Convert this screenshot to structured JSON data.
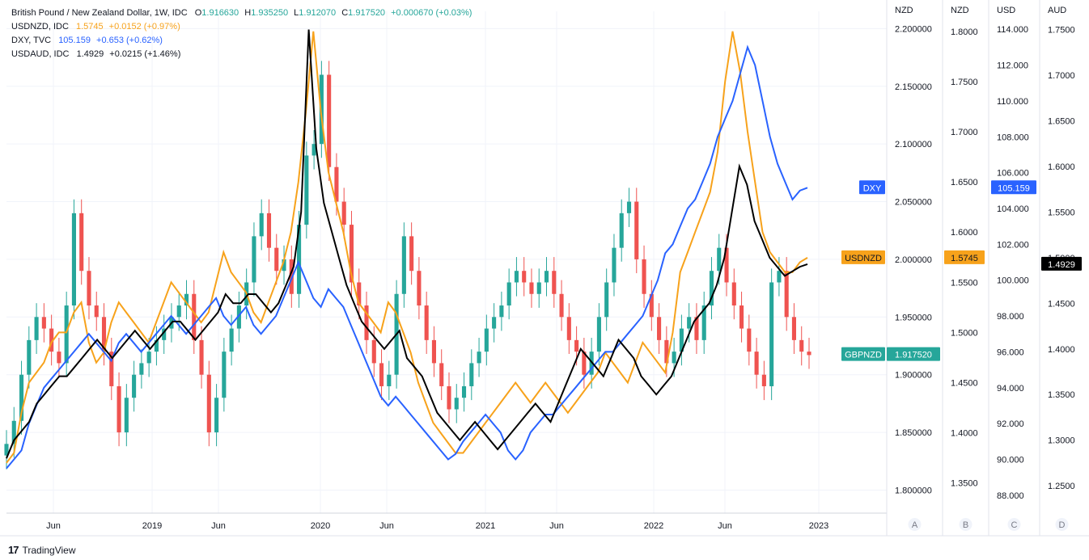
{
  "legend": {
    "main": {
      "symbol": "British Pound / New Zealand Dollar, 1W, IDC",
      "o_label": "O",
      "o": "1.916630",
      "h_label": "H",
      "h": "1.935250",
      "l_label": "L",
      "l": "1.912070",
      "c_label": "C",
      "c": "1.917520",
      "change": "+0.000670 (+0.03%)"
    },
    "usdnzd": {
      "symbol": "USDNZD, IDC",
      "value": "1.5745",
      "change": "+0.0152 (+0.97%)"
    },
    "dxy": {
      "symbol": "DXY, TVC",
      "value": "105.159",
      "change": "+0.653 (+0.62%)"
    },
    "usdaud": {
      "symbol": "USDAUD, IDC",
      "value": "1.4929",
      "change": "+0.0215 (+1.46%)"
    }
  },
  "brand": {
    "name": "TradingView",
    "logo": "17"
  },
  "colors": {
    "up": "#26a69a",
    "down": "#ef5350",
    "usdnzd": "#f7a21b",
    "dxy": "#2962ff",
    "usdaud": "#000000",
    "grid": "#f0f3fa",
    "axis_text": "#131722"
  },
  "chart_data": {
    "type": "line",
    "x_labels": [
      "Jun",
      "2019",
      "Jun",
      "2020",
      "Jun",
      "2021",
      "Jun",
      "2022",
      "Jun",
      "2023"
    ],
    "x_range": [
      "2018-01",
      "2022-12"
    ],
    "axes": [
      {
        "id": "A",
        "title": "NZD",
        "ticks": [
          "2.200000",
          "2.150000",
          "2.100000",
          "2.050000",
          "2.000000",
          "1.950000",
          "1.900000",
          "1.850000",
          "1.800000"
        ],
        "ylim": [
          1.78,
          2.215
        ]
      },
      {
        "id": "B",
        "title": "NZD",
        "ticks": [
          "1.8000",
          "1.7500",
          "1.7000",
          "1.6500",
          "1.6000",
          "1.5500",
          "1.5000",
          "1.4500",
          "1.4000",
          "1.3500"
        ],
        "ylim": [
          1.32,
          1.82
        ]
      },
      {
        "id": "C",
        "title": "USD",
        "ticks": [
          "114.000",
          "112.000",
          "110.000",
          "108.000",
          "106.000",
          "104.000",
          "102.000",
          "100.000",
          "98.000",
          "96.000",
          "94.000",
          "92.000",
          "90.000",
          "88.000"
        ],
        "ylim": [
          87,
          115
        ]
      },
      {
        "id": "D",
        "title": "AUD",
        "ticks": [
          "1.7500",
          "1.7000",
          "1.6500",
          "1.6000",
          "1.5500",
          "1.5000",
          "1.4500",
          "1.4000",
          "1.3500",
          "1.3000",
          "1.2500"
        ],
        "ylim": [
          1.22,
          1.77
        ]
      }
    ],
    "series": [
      {
        "name": "GBPNZD",
        "kind": "candlestick",
        "axis": "A",
        "label": "GBPNZD",
        "last_label": "1.917520",
        "close": [
          1.84,
          1.86,
          1.9,
          1.93,
          1.95,
          1.94,
          1.92,
          1.91,
          1.96,
          2.04,
          1.99,
          1.96,
          1.95,
          1.92,
          1.89,
          1.85,
          1.88,
          1.9,
          1.91,
          1.92,
          1.93,
          1.94,
          1.95,
          1.96,
          1.97,
          1.93,
          1.9,
          1.85,
          1.88,
          1.92,
          1.94,
          1.96,
          1.98,
          2.02,
          2.04,
          2.01,
          1.99,
          2.0,
          1.97,
          2.03,
          2.09,
          2.1,
          2.16,
          2.08,
          2.05,
          2.03,
          1.98,
          1.96,
          1.93,
          1.91,
          1.89,
          1.9,
          1.97,
          2.02,
          1.99,
          1.96,
          1.93,
          1.91,
          1.89,
          1.87,
          1.88,
          1.89,
          1.91,
          1.92,
          1.94,
          1.95,
          1.96,
          1.98,
          1.99,
          1.98,
          1.97,
          1.98,
          1.99,
          1.97,
          1.95,
          1.93,
          1.92,
          1.9,
          1.92,
          1.95,
          1.98,
          2.01,
          2.04,
          2.05,
          2.0,
          1.97,
          1.95,
          1.93,
          1.91,
          1.92,
          1.94,
          1.95,
          1.93,
          1.96,
          1.99,
          2.01,
          1.98,
          1.96,
          1.94,
          1.92,
          1.9,
          1.89,
          1.98,
          1.99,
          1.95,
          1.93,
          1.92,
          1.917
        ]
      },
      {
        "name": "USDNZD",
        "kind": "line",
        "axis": "B",
        "label": "USDNZD",
        "last_label": "1.5745",
        "values": [
          1.37,
          1.38,
          1.42,
          1.45,
          1.46,
          1.47,
          1.49,
          1.5,
          1.5,
          1.52,
          1.53,
          1.49,
          1.47,
          1.48,
          1.51,
          1.53,
          1.52,
          1.51,
          1.5,
          1.49,
          1.51,
          1.53,
          1.55,
          1.54,
          1.53,
          1.52,
          1.51,
          1.52,
          1.55,
          1.58,
          1.56,
          1.55,
          1.54,
          1.52,
          1.51,
          1.53,
          1.55,
          1.57,
          1.6,
          1.65,
          1.72,
          1.8,
          1.72,
          1.66,
          1.63,
          1.6,
          1.56,
          1.53,
          1.52,
          1.51,
          1.5,
          1.53,
          1.52,
          1.5,
          1.48,
          1.45,
          1.43,
          1.41,
          1.4,
          1.39,
          1.38,
          1.38,
          1.39,
          1.4,
          1.41,
          1.42,
          1.43,
          1.44,
          1.45,
          1.44,
          1.43,
          1.44,
          1.45,
          1.44,
          1.43,
          1.42,
          1.43,
          1.44,
          1.45,
          1.46,
          1.48,
          1.47,
          1.46,
          1.45,
          1.47,
          1.49,
          1.48,
          1.47,
          1.46,
          1.5,
          1.56,
          1.58,
          1.6,
          1.62,
          1.64,
          1.68,
          1.75,
          1.8,
          1.76,
          1.7,
          1.65,
          1.6,
          1.58,
          1.57,
          1.56,
          1.56,
          1.57,
          1.5745
        ]
      },
      {
        "name": "DXY",
        "kind": "line",
        "axis": "C",
        "label": "DXY",
        "last_label": "105.159",
        "values": [
          89.5,
          90.0,
          90.5,
          92.0,
          93.0,
          94.0,
          94.5,
          95.0,
          95.5,
          96.0,
          96.5,
          97.0,
          96.5,
          96.0,
          95.5,
          96.5,
          97.0,
          96.5,
          96.0,
          96.5,
          97.0,
          97.5,
          98.0,
          97.5,
          97.0,
          97.5,
          98.0,
          98.5,
          99.0,
          98.0,
          97.5,
          98.0,
          98.5,
          97.5,
          97.0,
          97.5,
          98.0,
          99.0,
          100.0,
          101.0,
          100.0,
          99.0,
          98.5,
          99.5,
          99.0,
          98.5,
          97.5,
          96.5,
          95.5,
          94.5,
          93.5,
          93.0,
          93.5,
          93.0,
          92.5,
          92.0,
          91.5,
          91.0,
          90.5,
          90.0,
          90.3,
          91.0,
          91.5,
          92.0,
          92.5,
          92.0,
          91.5,
          90.5,
          90.0,
          90.5,
          91.5,
          92.0,
          92.5,
          92.5,
          93.0,
          93.5,
          94.0,
          94.5,
          95.0,
          95.5,
          96.0,
          96.0,
          96.5,
          97.0,
          97.5,
          98.0,
          99.0,
          100.0,
          101.5,
          102.0,
          103.0,
          104.0,
          104.5,
          105.5,
          106.5,
          108.0,
          109.0,
          110.0,
          111.5,
          113.0,
          112.0,
          110.0,
          108.0,
          106.5,
          105.5,
          104.5,
          105.0,
          105.159
        ]
      },
      {
        "name": "USDAUD",
        "kind": "line",
        "axis": "D",
        "label": "USDAUD",
        "last_label": "1.4929",
        "values": [
          1.28,
          1.3,
          1.31,
          1.32,
          1.34,
          1.35,
          1.36,
          1.37,
          1.37,
          1.38,
          1.39,
          1.4,
          1.41,
          1.4,
          1.39,
          1.4,
          1.41,
          1.42,
          1.41,
          1.4,
          1.41,
          1.42,
          1.43,
          1.43,
          1.42,
          1.41,
          1.42,
          1.43,
          1.44,
          1.46,
          1.45,
          1.45,
          1.46,
          1.46,
          1.45,
          1.44,
          1.45,
          1.47,
          1.49,
          1.55,
          1.75,
          1.62,
          1.56,
          1.53,
          1.5,
          1.47,
          1.45,
          1.43,
          1.42,
          1.41,
          1.4,
          1.41,
          1.42,
          1.39,
          1.38,
          1.37,
          1.35,
          1.33,
          1.32,
          1.31,
          1.3,
          1.31,
          1.32,
          1.31,
          1.3,
          1.29,
          1.3,
          1.31,
          1.32,
          1.33,
          1.34,
          1.33,
          1.32,
          1.34,
          1.36,
          1.38,
          1.4,
          1.39,
          1.38,
          1.37,
          1.39,
          1.41,
          1.4,
          1.39,
          1.37,
          1.36,
          1.35,
          1.36,
          1.37,
          1.39,
          1.41,
          1.43,
          1.44,
          1.45,
          1.47,
          1.5,
          1.55,
          1.6,
          1.58,
          1.54,
          1.52,
          1.5,
          1.49,
          1.48,
          1.485,
          1.49,
          1.4929
        ]
      }
    ],
    "grid": true,
    "legend_position": "top-left",
    "scale_letters": [
      "A",
      "B",
      "C",
      "D"
    ]
  }
}
